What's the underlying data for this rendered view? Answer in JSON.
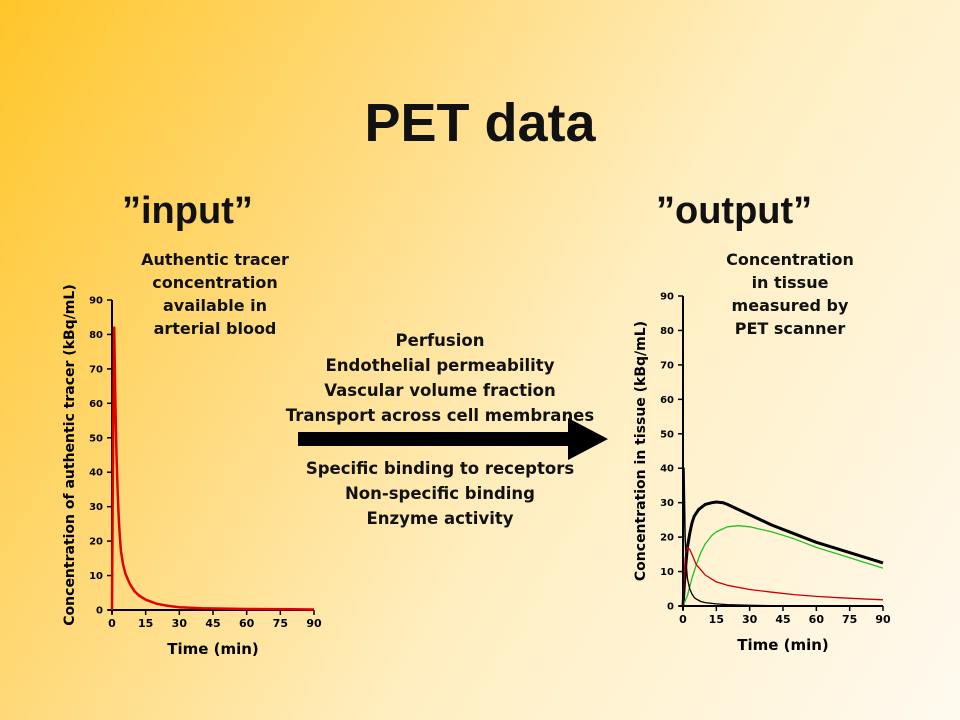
{
  "slide": {
    "title": "PET data",
    "input_heading": "”input”",
    "output_heading": "”output”",
    "input_note": [
      "Authentic tracer",
      "concentration",
      "available in",
      "arterial blood"
    ],
    "output_note": [
      "Concentration",
      "in tissue",
      "measured by",
      "PET scanner"
    ],
    "mechanisms_top": [
      "Perfusion",
      "Endothelial permeability",
      "Vascular volume fraction",
      "Transport across cell membranes"
    ],
    "mechanisms_bottom": [
      "Specific binding to receptors",
      "Non-specific binding",
      "Enzyme activity"
    ],
    "background_colors": [
      "#ffc62a",
      "#fffaf0"
    ],
    "arrow_color": "#000000"
  },
  "chart_data": [
    {
      "type": "line",
      "xlabel": "Time (min)",
      "ylabel": "Concentration of authentic tracer (kBq/mL)",
      "xlim": [
        0,
        90
      ],
      "ylim": [
        0,
        90
      ],
      "xticks": [
        "0",
        "15",
        "30",
        "45",
        "60",
        "75",
        "90"
      ],
      "yticks": [
        "0",
        "10",
        "20",
        "30",
        "40",
        "50",
        "60",
        "70",
        "80",
        "90"
      ],
      "series": [
        {
          "color": "#e00000",
          "x": [
            0,
            0.5,
            1,
            1.5,
            2,
            2.5,
            3,
            3.5,
            4,
            5,
            6,
            7,
            8,
            10,
            12,
            15,
            20,
            25,
            30,
            40,
            50,
            60,
            70,
            80,
            90
          ],
          "y": [
            0,
            50,
            82,
            60,
            45,
            35,
            27,
            21,
            17,
            13,
            10.5,
            9,
            7.5,
            5.5,
            4.2,
            3,
            1.8,
            1.2,
            0.8,
            0.5,
            0.4,
            0.3,
            0.25,
            0.2,
            0.15
          ]
        }
      ]
    },
    {
      "type": "line",
      "xlabel": "Time (min)",
      "ylabel": "Concentration in tissue (kBq/mL)",
      "xlim": [
        0,
        90
      ],
      "ylim": [
        0,
        90
      ],
      "xticks": [
        "0",
        "15",
        "30",
        "45",
        "60",
        "75",
        "90"
      ],
      "yticks": [
        "0",
        "10",
        "20",
        "30",
        "40",
        "50",
        "60",
        "70",
        "80",
        "90"
      ],
      "series": [
        {
          "color": "#000000",
          "x": [
            0,
            1,
            2,
            3,
            4,
            5,
            7,
            10,
            13,
            15,
            18,
            20,
            25,
            30,
            40,
            50,
            60,
            70,
            80,
            90
          ],
          "y": [
            0,
            10,
            17,
            21,
            24,
            26,
            28,
            29.5,
            30,
            30.2,
            30,
            29.5,
            28,
            26.5,
            23.5,
            21,
            18.5,
            16.5,
            14.5,
            12.5
          ]
        },
        {
          "color": "#22c022",
          "x": [
            0,
            2,
            4,
            6,
            8,
            10,
            13,
            15,
            20,
            25,
            30,
            40,
            50,
            60,
            70,
            80,
            90
          ],
          "y": [
            0,
            3,
            8,
            12,
            15.5,
            18,
            20.5,
            21.5,
            23,
            23.3,
            23,
            21.5,
            19.5,
            17,
            15,
            13,
            11
          ]
        },
        {
          "color": "#cc0000",
          "x": [
            0,
            0.5,
            1,
            2,
            3,
            4,
            5,
            6,
            8,
            10,
            15,
            20,
            30,
            40,
            50,
            60,
            70,
            80,
            90
          ],
          "y": [
            0,
            8,
            14,
            17,
            16.5,
            15,
            13.5,
            12,
            10.5,
            9,
            7,
            6,
            4.8,
            4,
            3.3,
            2.8,
            2.4,
            2.1,
            1.8
          ]
        },
        {
          "color": "#000000",
          "x": [
            0,
            0.5,
            1,
            1.5,
            2,
            3,
            4,
            5,
            6,
            8,
            10,
            15,
            20,
            30,
            40,
            90
          ],
          "y": [
            0,
            40,
            20,
            12,
            8,
            5,
            3.5,
            2.5,
            2,
            1.3,
            1,
            0.6,
            0.4,
            0.2,
            0.1,
            0.05
          ]
        }
      ]
    }
  ]
}
